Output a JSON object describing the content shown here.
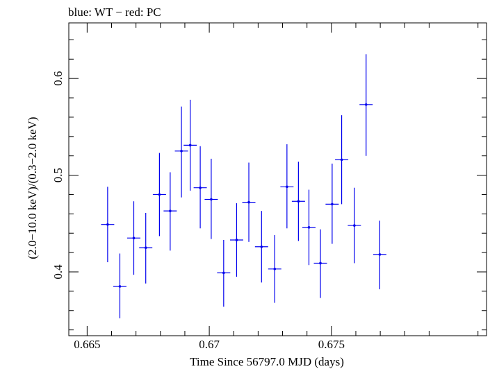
{
  "chart_data": {
    "type": "scatter",
    "title": "blue: WT − red: PC",
    "xlabel": "Time Since 56797.0 MJD (days)",
    "ylabel": "(2.0−10.0 keV)/(0.3−2.0 keV)",
    "xlim": [
      0.66425,
      0.68135
    ],
    "ylim": [
      0.334,
      0.6575
    ],
    "x_ticks": [
      0.665,
      0.67,
      0.675
    ],
    "x_tick_labels": [
      "0.665",
      "0.67",
      "0.675"
    ],
    "y_ticks": [
      0.4,
      0.5,
      0.6
    ],
    "y_tick_labels": [
      "0.4",
      "0.5",
      "0.6"
    ],
    "grid": false,
    "colors": {
      "WT": "#0000ee",
      "PC": "#ee0000"
    },
    "series": [
      {
        "name": "WT",
        "color": "#0000ee",
        "points": [
          {
            "x": 0.66584,
            "y": 0.449,
            "xerr": 0.00027,
            "ylo": 0.41,
            "yhi": 0.488
          },
          {
            "x": 0.66634,
            "y": 0.385,
            "xerr": 0.00027,
            "ylo": 0.352,
            "yhi": 0.419
          },
          {
            "x": 0.66691,
            "y": 0.435,
            "xerr": 0.00027,
            "ylo": 0.397,
            "yhi": 0.473
          },
          {
            "x": 0.6674,
            "y": 0.425,
            "xerr": 0.00027,
            "ylo": 0.388,
            "yhi": 0.461
          },
          {
            "x": 0.66796,
            "y": 0.48,
            "xerr": 0.00027,
            "ylo": 0.437,
            "yhi": 0.523
          },
          {
            "x": 0.6684,
            "y": 0.463,
            "xerr": 0.00027,
            "ylo": 0.422,
            "yhi": 0.503
          },
          {
            "x": 0.66886,
            "y": 0.525,
            "xerr": 0.00027,
            "ylo": 0.477,
            "yhi": 0.571
          },
          {
            "x": 0.66922,
            "y": 0.531,
            "xerr": 0.00027,
            "ylo": 0.484,
            "yhi": 0.578
          },
          {
            "x": 0.66963,
            "y": 0.487,
            "xerr": 0.00027,
            "ylo": 0.445,
            "yhi": 0.53
          },
          {
            "x": 0.67008,
            "y": 0.475,
            "xerr": 0.00027,
            "ylo": 0.434,
            "yhi": 0.517
          },
          {
            "x": 0.67059,
            "y": 0.399,
            "xerr": 0.00027,
            "ylo": 0.364,
            "yhi": 0.433
          },
          {
            "x": 0.67112,
            "y": 0.433,
            "xerr": 0.00027,
            "ylo": 0.395,
            "yhi": 0.471
          },
          {
            "x": 0.67162,
            "y": 0.472,
            "xerr": 0.00027,
            "ylo": 0.431,
            "yhi": 0.513
          },
          {
            "x": 0.67214,
            "y": 0.426,
            "xerr": 0.00027,
            "ylo": 0.389,
            "yhi": 0.463
          },
          {
            "x": 0.67268,
            "y": 0.403,
            "xerr": 0.00027,
            "ylo": 0.368,
            "yhi": 0.438
          },
          {
            "x": 0.67318,
            "y": 0.488,
            "xerr": 0.00027,
            "ylo": 0.445,
            "yhi": 0.532
          },
          {
            "x": 0.67365,
            "y": 0.473,
            "xerr": 0.00027,
            "ylo": 0.432,
            "yhi": 0.514
          },
          {
            "x": 0.67408,
            "y": 0.446,
            "xerr": 0.00027,
            "ylo": 0.407,
            "yhi": 0.485
          },
          {
            "x": 0.67455,
            "y": 0.409,
            "xerr": 0.00027,
            "ylo": 0.373,
            "yhi": 0.444
          },
          {
            "x": 0.67503,
            "y": 0.47,
            "xerr": 0.00027,
            "ylo": 0.429,
            "yhi": 0.512
          },
          {
            "x": 0.67542,
            "y": 0.516,
            "xerr": 0.00027,
            "ylo": 0.47,
            "yhi": 0.562
          },
          {
            "x": 0.67594,
            "y": 0.448,
            "xerr": 0.00027,
            "ylo": 0.409,
            "yhi": 0.487
          },
          {
            "x": 0.67642,
            "y": 0.573,
            "xerr": 0.00027,
            "ylo": 0.52,
            "yhi": 0.625
          },
          {
            "x": 0.67698,
            "y": 0.418,
            "xerr": 0.00027,
            "ylo": 0.382,
            "yhi": 0.453
          }
        ]
      }
    ]
  }
}
